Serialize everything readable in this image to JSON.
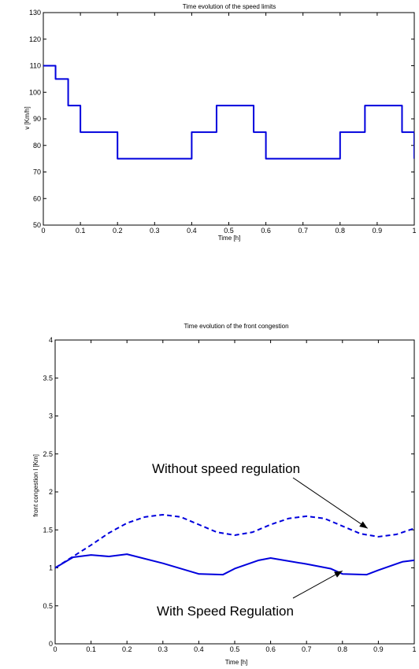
{
  "chart_data": [
    {
      "type": "line",
      "title": "Time evolution of the speed limits",
      "xlabel": "Time [h]",
      "ylabel": "v [Km/h]",
      "xlim": [
        0,
        1
      ],
      "ylim": [
        50,
        130
      ],
      "xticks": [
        0,
        0.1,
        0.2,
        0.3,
        0.4,
        0.5,
        0.6,
        0.7,
        0.8,
        0.9,
        1
      ],
      "yticks": [
        50,
        60,
        70,
        80,
        90,
        100,
        110,
        120,
        130
      ],
      "grid": false,
      "series": [
        {
          "color": "#0000dd",
          "style": "solid",
          "x": [
            0,
            0.033,
            0.033,
            0.067,
            0.067,
            0.1,
            0.1,
            0.2,
            0.2,
            0.4,
            0.4,
            0.467,
            0.467,
            0.567,
            0.567,
            0.6,
            0.6,
            0.8,
            0.8,
            0.867,
            0.867,
            0.967,
            0.967,
            1.0,
            1.0
          ],
          "y": [
            110,
            110,
            105,
            105,
            95,
            95,
            85,
            85,
            75,
            75,
            85,
            85,
            95,
            95,
            85,
            85,
            75,
            75,
            85,
            85,
            95,
            95,
            85,
            85,
            75
          ]
        }
      ]
    },
    {
      "type": "line",
      "title": "Time evolution of the front congestion",
      "xlabel": "Time [h]",
      "ylabel": "front congestion l [Km]",
      "xlim": [
        0,
        1
      ],
      "ylim": [
        0,
        4
      ],
      "xticks": [
        0,
        0.1,
        0.2,
        0.3,
        0.4,
        0.5,
        0.6,
        0.7,
        0.8,
        0.9,
        1
      ],
      "yticks": [
        0,
        0.5,
        1,
        1.5,
        2,
        2.5,
        3,
        3.5,
        4
      ],
      "grid": false,
      "series": [
        {
          "color": "#0000dd",
          "style": "dashed",
          "x": [
            0,
            0.05,
            0.1,
            0.15,
            0.2,
            0.25,
            0.3,
            0.35,
            0.4,
            0.45,
            0.5,
            0.55,
            0.6,
            0.65,
            0.7,
            0.75,
            0.8,
            0.85,
            0.9,
            0.95,
            1.0
          ],
          "y": [
            1.0,
            1.15,
            1.3,
            1.46,
            1.59,
            1.67,
            1.7,
            1.67,
            1.57,
            1.47,
            1.43,
            1.47,
            1.57,
            1.65,
            1.68,
            1.65,
            1.55,
            1.45,
            1.41,
            1.44,
            1.52
          ]
        },
        {
          "color": "#0000dd",
          "style": "solid",
          "x": [
            0,
            0.05,
            0.1,
            0.15,
            0.2,
            0.3,
            0.4,
            0.467,
            0.5,
            0.567,
            0.6,
            0.7,
            0.767,
            0.8,
            0.867,
            0.9,
            0.967,
            1.0
          ],
          "y": [
            1.0,
            1.14,
            1.17,
            1.15,
            1.18,
            1.06,
            0.92,
            0.91,
            0.99,
            1.1,
            1.13,
            1.05,
            0.99,
            0.92,
            0.91,
            0.97,
            1.08,
            1.1
          ]
        }
      ],
      "annotations": [
        {
          "text": "Without speed regulation",
          "x": 0.48,
          "y": 2.5,
          "arrow_to": [
            0.87,
            1.52
          ]
        },
        {
          "text": "With Speed Regulation",
          "x": 0.5,
          "y": 0.28,
          "arrow_to": [
            0.8,
            0.96
          ]
        }
      ]
    }
  ]
}
